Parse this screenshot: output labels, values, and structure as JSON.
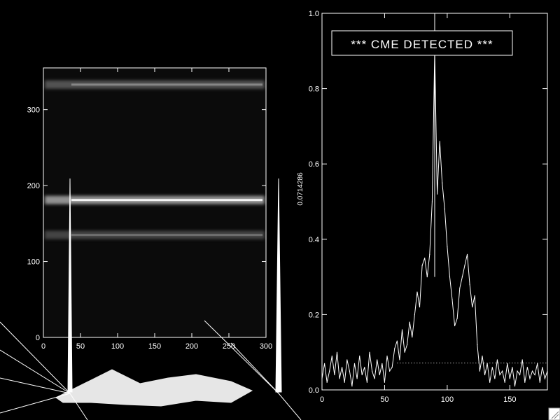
{
  "chart_data": [
    {
      "type": "heatmap",
      "title": "",
      "xlabel": "",
      "ylabel": "",
      "xlim": [
        0,
        300
      ],
      "ylim": [
        0,
        355
      ],
      "xticks": [
        0,
        50,
        100,
        150,
        200,
        250,
        300
      ],
      "yticks": [
        0,
        100,
        200,
        300
      ],
      "bright_bands": [
        {
          "y_center": 333,
          "intensity": 0.55
        },
        {
          "y_center": 181,
          "intensity": 1.0
        },
        {
          "y_center": 135,
          "intensity": 0.45
        }
      ]
    },
    {
      "type": "line",
      "title": "",
      "xlabel": "",
      "ylabel": "0.0714286",
      "annotation": "*** CME DETECTED ***",
      "xlim": [
        0,
        180
      ],
      "ylim": [
        0,
        1.0
      ],
      "xticks": [
        0,
        50,
        100,
        150
      ],
      "yticks": [
        0.0,
        0.2,
        0.4,
        0.6,
        0.8,
        1.0
      ],
      "threshold": 0.0714286,
      "threshold_range": [
        60,
        180
      ],
      "marker_x": 90,
      "series": [
        {
          "x": [
            0,
            2,
            4,
            6,
            8,
            10,
            12,
            14,
            16,
            18,
            20,
            22,
            24,
            26,
            28,
            30,
            32,
            34,
            36,
            38,
            40,
            42,
            44,
            46,
            48,
            50,
            52,
            54,
            56,
            58,
            60,
            62,
            64,
            66,
            68,
            70,
            72,
            74,
            76,
            78,
            80,
            82,
            84,
            86,
            88,
            90,
            92,
            94,
            96,
            98,
            100,
            102,
            104,
            106,
            108,
            110,
            112,
            114,
            116,
            118,
            120,
            122,
            124,
            126,
            128,
            130,
            132,
            134,
            136,
            138,
            140,
            142,
            144,
            146,
            148,
            150,
            152,
            154,
            156,
            158,
            160,
            162,
            164,
            166,
            168,
            170,
            172,
            174,
            176,
            178,
            180
          ],
          "y": [
            0.03,
            0.07,
            0.02,
            0.05,
            0.09,
            0.04,
            0.1,
            0.03,
            0.06,
            0.02,
            0.08,
            0.05,
            0.01,
            0.07,
            0.03,
            0.09,
            0.04,
            0.06,
            0.02,
            0.1,
            0.05,
            0.03,
            0.08,
            0.04,
            0.07,
            0.02,
            0.09,
            0.05,
            0.06,
            0.11,
            0.13,
            0.08,
            0.16,
            0.1,
            0.12,
            0.18,
            0.14,
            0.2,
            0.26,
            0.22,
            0.33,
            0.35,
            0.3,
            0.36,
            0.5,
            0.9,
            0.52,
            0.66,
            0.55,
            0.48,
            0.38,
            0.3,
            0.24,
            0.17,
            0.19,
            0.27,
            0.3,
            0.33,
            0.36,
            0.28,
            0.22,
            0.25,
            0.12,
            0.05,
            0.09,
            0.04,
            0.07,
            0.02,
            0.06,
            0.03,
            0.08,
            0.04,
            0.05,
            0.02,
            0.07,
            0.03,
            0.06,
            0.01,
            0.05,
            0.04,
            0.08,
            0.02,
            0.06,
            0.03,
            0.05,
            0.04,
            0.07,
            0.02,
            0.06,
            0.03,
            0.05
          ]
        }
      ]
    }
  ]
}
